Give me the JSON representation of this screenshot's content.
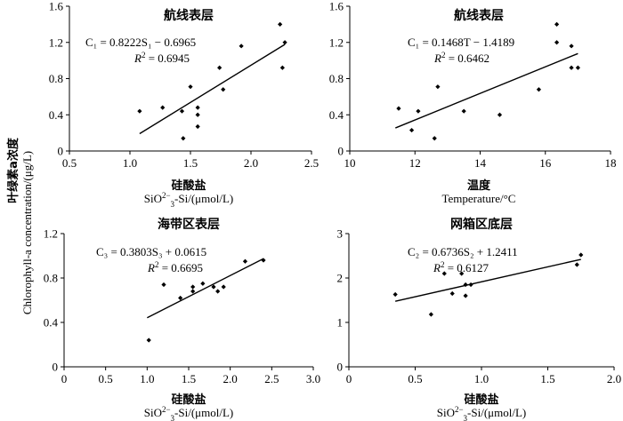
{
  "figure": {
    "y_label_cn": "叶绿素a浓度",
    "y_label_en": "Chlorophyll-a concentration/(μg/L)"
  },
  "chart_data": [
    {
      "type": "scatter",
      "title": "航线表层",
      "xlabel_cn": "硅酸盐",
      "xlabel_unit": "/(μmol/L)",
      "xlim": [
        0.5,
        2.5
      ],
      "ylim": [
        0,
        1.6
      ],
      "xticks": [
        "0.5",
        "1.0",
        "1.5",
        "2.0",
        "2.5"
      ],
      "yticks": [
        "0",
        "0.4",
        "0.8",
        "1.2",
        "1.6"
      ],
      "points": [
        {
          "x": 1.08,
          "y": 0.44
        },
        {
          "x": 1.27,
          "y": 0.48
        },
        {
          "x": 1.43,
          "y": 0.44
        },
        {
          "x": 1.44,
          "y": 0.14
        },
        {
          "x": 1.5,
          "y": 0.71
        },
        {
          "x": 1.56,
          "y": 0.48
        },
        {
          "x": 1.56,
          "y": 0.4
        },
        {
          "x": 1.56,
          "y": 0.27
        },
        {
          "x": 1.74,
          "y": 0.92
        },
        {
          "x": 1.77,
          "y": 0.68
        },
        {
          "x": 1.92,
          "y": 1.16
        },
        {
          "x": 2.24,
          "y": 1.4
        },
        {
          "x": 2.26,
          "y": 0.92
        },
        {
          "x": 2.28,
          "y": 1.2
        }
      ],
      "trend": {
        "x1": 1.08,
        "x2": 2.28,
        "slope": 0.8222,
        "intercept": -0.6965
      },
      "equation": "C₁ = 0.8222S₁ −  0.6965",
      "r2_label": "R",
      "r2_value": " = 0.6945"
    },
    {
      "type": "scatter",
      "title": "航线表层",
      "xlabel_cn": "温度",
      "xlabel_en": "Temperature/°C",
      "xlim": [
        10,
        18
      ],
      "ylim": [
        0,
        1.6
      ],
      "xticks": [
        "10",
        "12",
        "14",
        "16",
        "18"
      ],
      "yticks": [
        "0",
        "0.4",
        "0.8",
        "1.2",
        "1.6"
      ],
      "points": [
        {
          "x": 11.5,
          "y": 0.47
        },
        {
          "x": 11.9,
          "y": 0.23
        },
        {
          "x": 12.1,
          "y": 0.44
        },
        {
          "x": 12.6,
          "y": 0.14
        },
        {
          "x": 12.7,
          "y": 0.71
        },
        {
          "x": 13.5,
          "y": 0.44
        },
        {
          "x": 14.6,
          "y": 0.4
        },
        {
          "x": 15.8,
          "y": 0.68
        },
        {
          "x": 16.35,
          "y": 1.4
        },
        {
          "x": 16.35,
          "y": 1.2
        },
        {
          "x": 16.8,
          "y": 1.16
        },
        {
          "x": 16.8,
          "y": 0.92
        },
        {
          "x": 17.0,
          "y": 0.92
        }
      ],
      "trend": {
        "x1": 11.4,
        "x2": 17.0,
        "slope": 0.1468,
        "intercept": -1.4189
      },
      "equation": "C₁ = 0.1468T −  1.4189",
      "r2_label": "R",
      "r2_value": " = 0.6462"
    },
    {
      "type": "scatter",
      "title": "海带区表层",
      "xlabel_cn": "硅酸盐",
      "xlabel_unit": "/(μmol/L)",
      "xlim": [
        0,
        3.0
      ],
      "ylim": [
        0,
        1.2
      ],
      "xticks": [
        "0",
        "0.5",
        "1.0",
        "1.5",
        "2.0",
        "2.5",
        "3.0"
      ],
      "yticks": [
        "0",
        "0.4",
        "0.8",
        "1.2"
      ],
      "points": [
        {
          "x": 1.02,
          "y": 0.24
        },
        {
          "x": 1.2,
          "y": 0.74
        },
        {
          "x": 1.4,
          "y": 0.62
        },
        {
          "x": 1.55,
          "y": 0.72
        },
        {
          "x": 1.55,
          "y": 0.68
        },
        {
          "x": 1.67,
          "y": 0.75
        },
        {
          "x": 1.8,
          "y": 0.72
        },
        {
          "x": 1.85,
          "y": 0.68
        },
        {
          "x": 1.92,
          "y": 0.72
        },
        {
          "x": 2.18,
          "y": 0.95
        },
        {
          "x": 2.4,
          "y": 0.96
        }
      ],
      "trend": {
        "x1": 1.0,
        "x2": 2.4,
        "slope": 0.3803,
        "intercept": 0.0615
      },
      "equation": "C₃ = 0.3803S₃ + 0.0615",
      "r2_label": "R",
      "r2_value": " = 0.6695"
    },
    {
      "type": "scatter",
      "title": "网箱区底层",
      "xlabel_cn": "硅酸盐",
      "xlabel_unit": "/(μmol/L)",
      "xlim": [
        0,
        2.0
      ],
      "ylim": [
        0,
        3
      ],
      "xticks": [
        "0",
        "0.5",
        "1.0",
        "1.5",
        "2.0"
      ],
      "yticks": [
        "0",
        "1",
        "2",
        "3"
      ],
      "points": [
        {
          "x": 0.35,
          "y": 1.63
        },
        {
          "x": 0.62,
          "y": 1.18
        },
        {
          "x": 0.72,
          "y": 2.1
        },
        {
          "x": 0.78,
          "y": 1.65
        },
        {
          "x": 0.85,
          "y": 2.1
        },
        {
          "x": 0.88,
          "y": 1.85
        },
        {
          "x": 0.88,
          "y": 1.6
        },
        {
          "x": 0.92,
          "y": 1.85
        },
        {
          "x": 1.72,
          "y": 2.3
        },
        {
          "x": 1.75,
          "y": 2.52
        }
      ],
      "trend": {
        "x1": 0.35,
        "x2": 1.75,
        "slope": 0.6736,
        "intercept": 1.2411
      },
      "equation": "C₂ = 0.6736S₂ + 1.2411",
      "r2_label": "R",
      "r2_value": " = 0.6127"
    }
  ]
}
